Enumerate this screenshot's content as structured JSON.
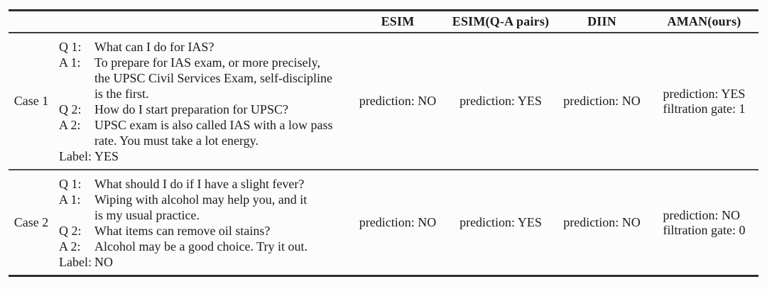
{
  "header": {
    "columns": [
      "ESIM",
      "ESIM(Q-A pairs)",
      "DIIN",
      "AMAN(ours)"
    ]
  },
  "cases": [
    {
      "label": "Case 1",
      "qa": [
        {
          "prefix": "Q 1:",
          "text": "What can I do for IAS?"
        },
        {
          "prefix": "A 1:",
          "text": "To prepare for IAS exam, or more precisely,\nthe UPSC Civil Services Exam, self-discipline\nis the first."
        },
        {
          "prefix": "Q 2:",
          "text": "How do I start preparation for UPSC?"
        },
        {
          "prefix": "A 2:",
          "text": "UPSC exam is also called IAS with a low pass\nrate. You must take a lot energy."
        },
        {
          "prefix": "Label:",
          "text": "YES"
        }
      ],
      "predictions": {
        "esim": "prediction: NO",
        "esim_qa": "prediction: YES",
        "diin": "prediction: NO",
        "aman": {
          "prediction": "prediction: YES",
          "gate": "filtration gate: 1"
        }
      }
    },
    {
      "label": "Case 2",
      "qa": [
        {
          "prefix": "Q 1:",
          "text": "What should I do if I have a slight fever?"
        },
        {
          "prefix": "A 1:",
          "text": "Wiping with alcohol may help you, and it\nis my usual practice."
        },
        {
          "prefix": "Q 2:",
          "text": "What items can remove oil stains?"
        },
        {
          "prefix": "A 2:",
          "text": "Alcohol may be a good choice. Try it out."
        },
        {
          "prefix": "Label:",
          "text": "NO"
        }
      ],
      "predictions": {
        "esim": "prediction: NO",
        "esim_qa": "prediction: YES",
        "diin": "prediction: NO",
        "aman": {
          "prediction": "prediction: NO",
          "gate": "filtration gate: 0"
        }
      }
    }
  ]
}
